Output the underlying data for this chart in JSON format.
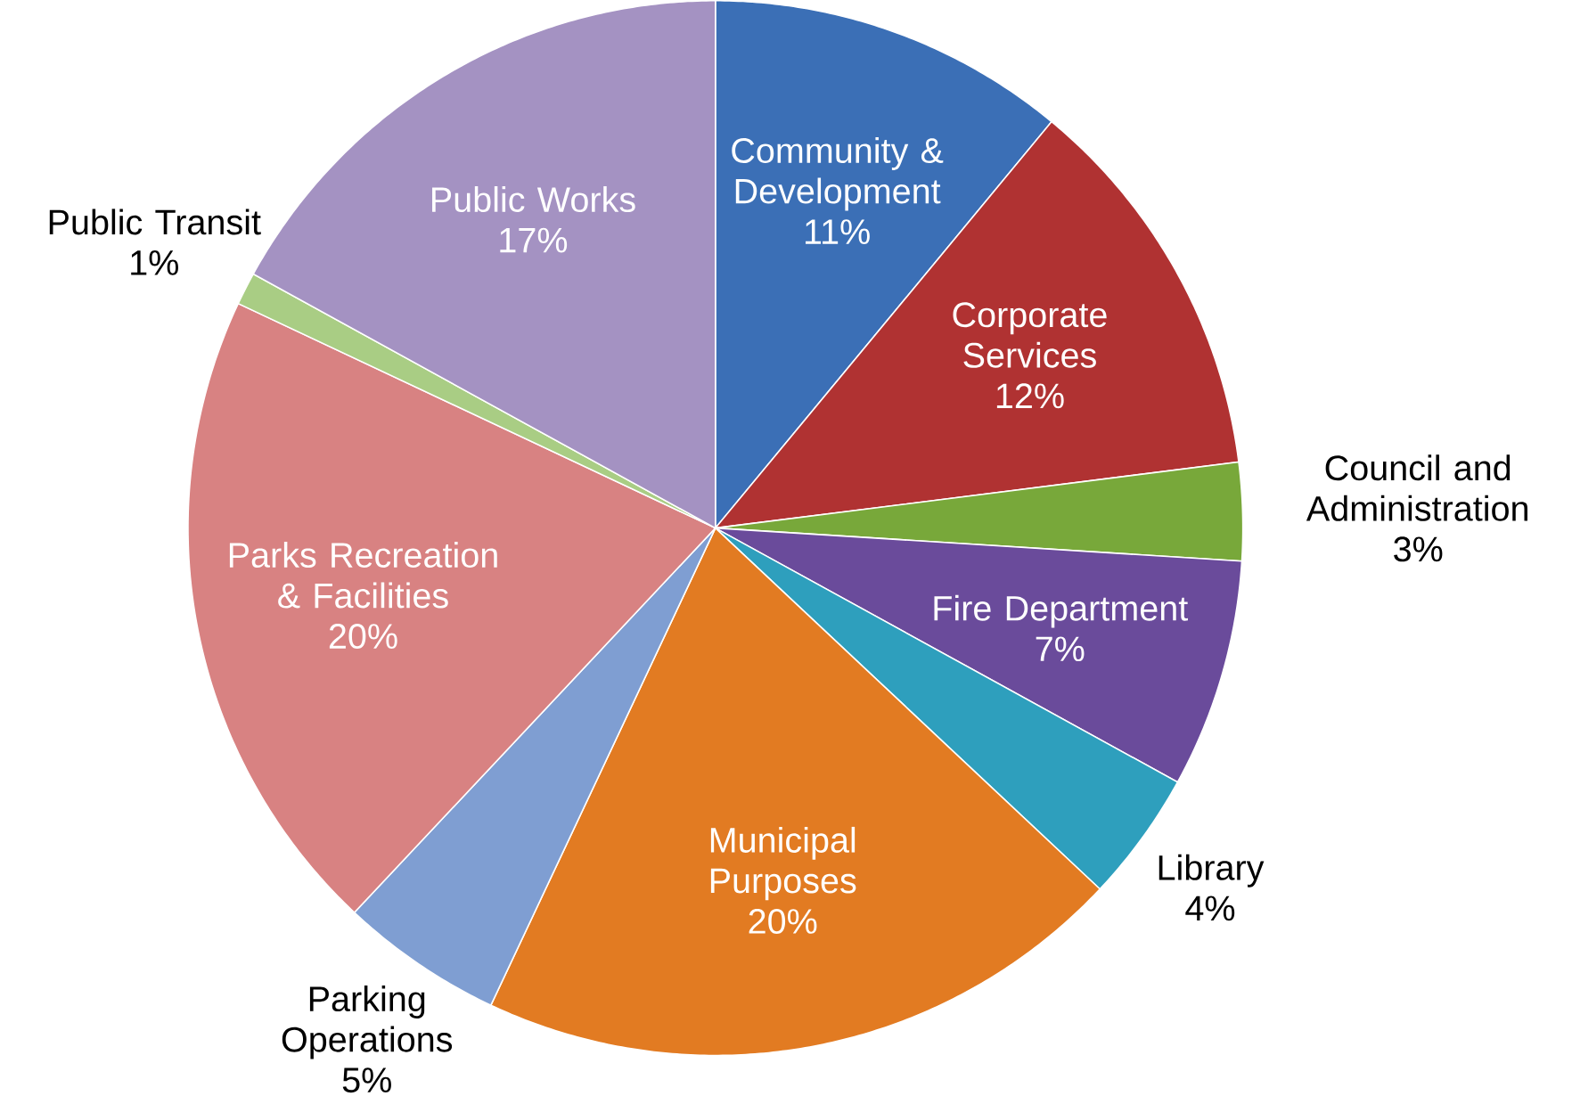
{
  "chart_data": {
    "type": "pie",
    "categories": [
      "Community & Development",
      "Corporate Services",
      "Council and Administration",
      "Fire Department",
      "Library",
      "Municipal Purposes",
      "Parking Operations",
      "Parks Recreation & Facilities",
      "Public Transit",
      "Public Works"
    ],
    "values": [
      11,
      12,
      3,
      7,
      4,
      20,
      5,
      20,
      1,
      17
    ],
    "value_labels": [
      "11%",
      "12%",
      "3%",
      "7%",
      "4%",
      "20%",
      "5%",
      "20%",
      "1%",
      "17%"
    ],
    "colors": [
      "#3b6fb6",
      "#b03232",
      "#78a83a",
      "#6a4b9b",
      "#2e9fbd",
      "#e27b22",
      "#7f9ed2",
      "#d88282",
      "#a9cd84",
      "#a492c2"
    ]
  }
}
